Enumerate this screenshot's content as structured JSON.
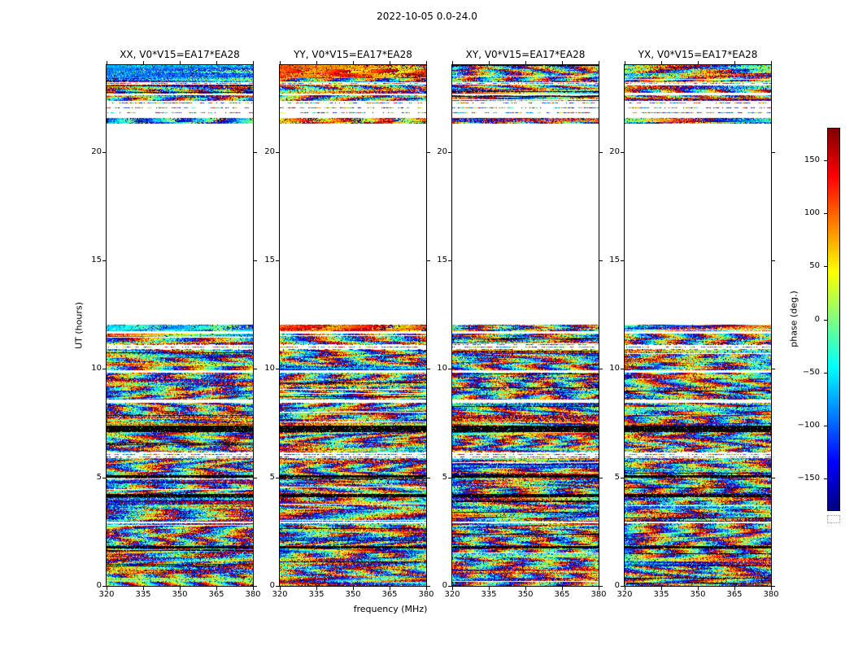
{
  "chart_data": {
    "type": "heatmap",
    "title": "2022-10-05 0.0-24.0",
    "xlabel": "frequency (MHz)",
    "ylabel": "UT (hours)",
    "x_range": [
      320,
      380
    ],
    "x_ticks": [
      320,
      335,
      350,
      365,
      380
    ],
    "y_range": [
      0,
      24
    ],
    "y_ticks": [
      0,
      5,
      10,
      15,
      20
    ],
    "colorbar": {
      "label": "phase (deg.)",
      "range": [
        -180,
        180
      ],
      "ticks": [
        -150,
        -100,
        -50,
        0,
        50,
        100,
        150
      ],
      "colormap": "jet"
    },
    "panels": [
      {
        "id": "XX",
        "title": "XX, V0*V15=EA17*EA28"
      },
      {
        "id": "YY",
        "title": "YY, V0*V15=EA17*EA28"
      },
      {
        "id": "XY",
        "title": "XY, V0*V15=EA17*EA28"
      },
      {
        "id": "YX",
        "title": "YX, V0*V15=EA17*EA28"
      }
    ],
    "bands": [
      {
        "y0": 0.0,
        "y1": 1.72,
        "style": "noise"
      },
      {
        "y0": 1.72,
        "y1": 1.84,
        "style": "black"
      },
      {
        "y0": 1.84,
        "y1": 2.9,
        "style": "noise"
      },
      {
        "y0": 2.9,
        "y1": 2.98,
        "style": "white"
      },
      {
        "y0": 2.98,
        "y1": 4.08,
        "style": "noise"
      },
      {
        "y0": 4.08,
        "y1": 4.22,
        "style": "black"
      },
      {
        "y0": 4.22,
        "y1": 4.98,
        "style": "noise"
      },
      {
        "y0": 4.98,
        "y1": 5.1,
        "style": "black"
      },
      {
        "y0": 5.1,
        "y1": 5.88,
        "style": "noise"
      },
      {
        "y0": 5.88,
        "y1": 6.18,
        "style": "sparse"
      },
      {
        "y0": 6.18,
        "y1": 7.08,
        "style": "noise"
      },
      {
        "y0": 7.08,
        "y1": 7.38,
        "style": "black"
      },
      {
        "y0": 7.38,
        "y1": 8.45,
        "style": "noise"
      },
      {
        "y0": 8.45,
        "y1": 8.58,
        "style": "white"
      },
      {
        "y0": 8.58,
        "y1": 9.82,
        "style": "noise"
      },
      {
        "y0": 9.82,
        "y1": 9.92,
        "style": "white"
      },
      {
        "y0": 9.92,
        "y1": 10.88,
        "style": "noise"
      },
      {
        "y0": 10.88,
        "y1": 11.14,
        "style": "sparse"
      },
      {
        "y0": 11.14,
        "y1": 11.62,
        "style": "noise"
      },
      {
        "y0": 11.62,
        "y1": 11.72,
        "style": "white"
      },
      {
        "y0": 11.72,
        "y1": 12.05,
        "style": "noise",
        "tint": {
          "XX": -55,
          "YY": 115
        },
        "tintStrength": 0.8
      },
      {
        "y0": 12.05,
        "y1": 21.3,
        "style": "white"
      },
      {
        "y0": 21.3,
        "y1": 21.56,
        "style": "noise",
        "tint": {
          "XX": -80,
          "YY": 95
        },
        "tintStrength": 0.5
      },
      {
        "y0": 21.56,
        "y1": 21.74,
        "style": "white"
      },
      {
        "y0": 21.74,
        "y1": 21.86,
        "style": "sparse"
      },
      {
        "y0": 21.86,
        "y1": 21.96,
        "style": "white"
      },
      {
        "y0": 21.96,
        "y1": 22.08,
        "style": "sparse"
      },
      {
        "y0": 22.08,
        "y1": 22.2,
        "style": "white"
      },
      {
        "y0": 22.2,
        "y1": 22.34,
        "style": "sparse"
      },
      {
        "y0": 22.34,
        "y1": 22.6,
        "style": "noise"
      },
      {
        "y0": 22.6,
        "y1": 22.68,
        "style": "white"
      },
      {
        "y0": 22.68,
        "y1": 23.1,
        "style": "noise"
      },
      {
        "y0": 23.1,
        "y1": 23.2,
        "style": "sparse"
      },
      {
        "y0": 23.2,
        "y1": 23.4,
        "style": "noise"
      },
      {
        "y0": 23.4,
        "y1": 24.0,
        "style": "noise",
        "tint": {
          "XX": -70,
          "YY": 105
        },
        "tintStrength": 0.8
      }
    ],
    "description": "Visibility phase vs frequency and UT time for baseline V0*V15 (EA17*EA28) in four polarizations. Random multicoloured fringe phases where data are present; white where no data (12.1-21.3 UT and thin gaps); black rows are flagged data; XX is biased toward negative phase (blue/cyan) and YY toward positive phase (red/orange) near 12 UT and in the 21.3-24 UT scans."
  }
}
